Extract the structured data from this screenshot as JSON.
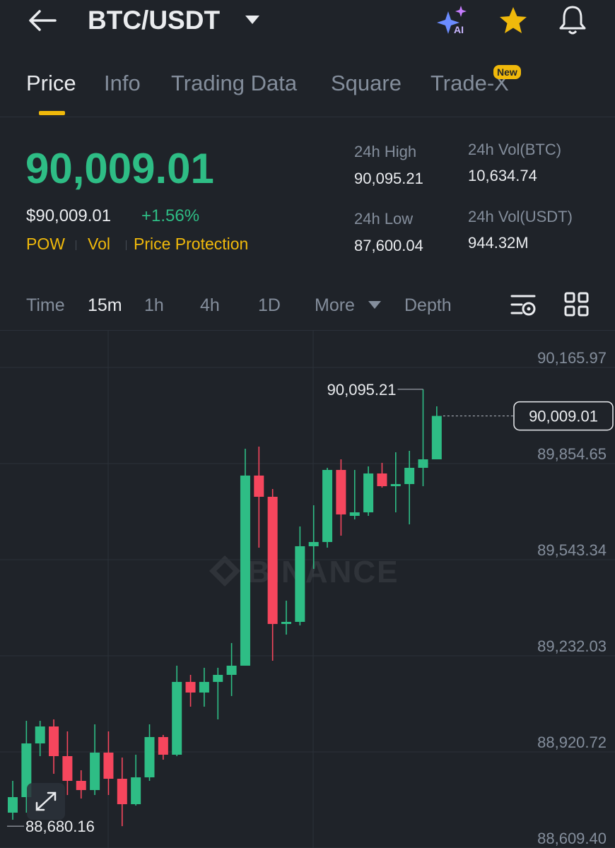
{
  "header": {
    "pair": "BTC/USDT",
    "ai_badge": "AI"
  },
  "tabs": [
    "Price",
    "Info",
    "Trading Data",
    "Square",
    "Trade-X"
  ],
  "new_badge": "New",
  "ticker": {
    "last_price": "90,009.01",
    "usd_price": "$90,009.01",
    "change": "+1.56%",
    "tags": [
      "POW",
      "Vol",
      "Price Protection"
    ],
    "stats": [
      {
        "label": "24h High",
        "value": "90,095.21"
      },
      {
        "label": "24h Vol(BTC)",
        "value": "10,634.74"
      },
      {
        "label": "24h Low",
        "value": "87,600.04"
      },
      {
        "label": "24h Vol(USDT)",
        "value": "944.32M"
      }
    ]
  },
  "intervals": [
    "Time",
    "15m",
    "1h",
    "4h",
    "1D",
    "More",
    "Depth"
  ],
  "chart_data": {
    "type": "candlestick",
    "watermark": "BINANCE",
    "up_color": "#2ebd85",
    "down_color": "#f6465d",
    "grid": true,
    "ylim": [
      88609.4,
      90165.97
    ],
    "yticks": [
      {
        "value": 90165.97,
        "label": "90,165.97"
      },
      {
        "value": 89854.65,
        "label": "89,854.65"
      },
      {
        "value": 89543.34,
        "label": "89,543.34"
      },
      {
        "value": 89232.03,
        "label": "89,232.03"
      },
      {
        "value": 88920.72,
        "label": "88,920.72"
      },
      {
        "value": 88609.4,
        "label": "88,609.40"
      }
    ],
    "open": [
      88723.9,
      88774.2,
      88948.2,
      89003.1,
      88907,
      88826.9,
      88797.1,
      88918.4,
      88833.7,
      88751.3,
      88838.3,
      88968.8,
      88911.6,
      89147.4,
      89113,
      89147.4,
      89170.2,
      89200,
      89815.8,
      89747.1,
      89335.1,
      89341.9,
      89586.9,
      89600.6,
      89834.1,
      89685.3,
      89696.7,
      89822.6,
      89781.4,
      89788.3,
      89840.9,
      89868.4
    ],
    "high": [
      88826.9,
      89021.4,
      89021.4,
      89026,
      88987.1,
      88861.2,
      89010,
      88987.1,
      88902.4,
      88911.6,
      89010,
      88975.7,
      89200,
      89170.2,
      89193.1,
      89193.1,
      89273.3,
      89902.8,
      89909.6,
      89772.3,
      89410.6,
      89651,
      89719.6,
      89840.9,
      89868.4,
      89834.1,
      89845.5,
      89857,
      89891.3,
      89895.9,
      90095.21,
      90040
    ],
    "low": [
      88701,
      88723.9,
      88907,
      88849.8,
      88781.1,
      88769.6,
      88781.1,
      88781.1,
      88680.16,
      88746.8,
      88826.9,
      88895.5,
      88907,
      89067.2,
      89067.2,
      89026,
      89101.6,
      89200,
      89582.3,
      89216,
      89300.7,
      89330.5,
      89513.6,
      89582.3,
      89621.2,
      89673.8,
      89685.3,
      89776.8,
      89696.7,
      89657.8,
      89781.4,
      89868.4
    ],
    "close": [
      88774.2,
      88948.2,
      89003.1,
      88907,
      88826.9,
      88797.1,
      88918.4,
      88833.7,
      88751.3,
      88838.3,
      88968.8,
      88911.6,
      89147.4,
      89113,
      89147.4,
      89170.2,
      89200,
      89815.8,
      89747.1,
      89335.1,
      89341.9,
      89586.9,
      89600.6,
      89834.1,
      89689.9,
      89696.7,
      89822.6,
      89781.4,
      89788.3,
      89840.9,
      89868.4,
      90009.01
    ],
    "high_label": {
      "value": 90095.21,
      "label": "90,095.21"
    },
    "low_label": {
      "value": 88680.16,
      "label": "88,680.16"
    },
    "last_price_label": {
      "value": 90009.01,
      "label": "90,009.01"
    }
  }
}
